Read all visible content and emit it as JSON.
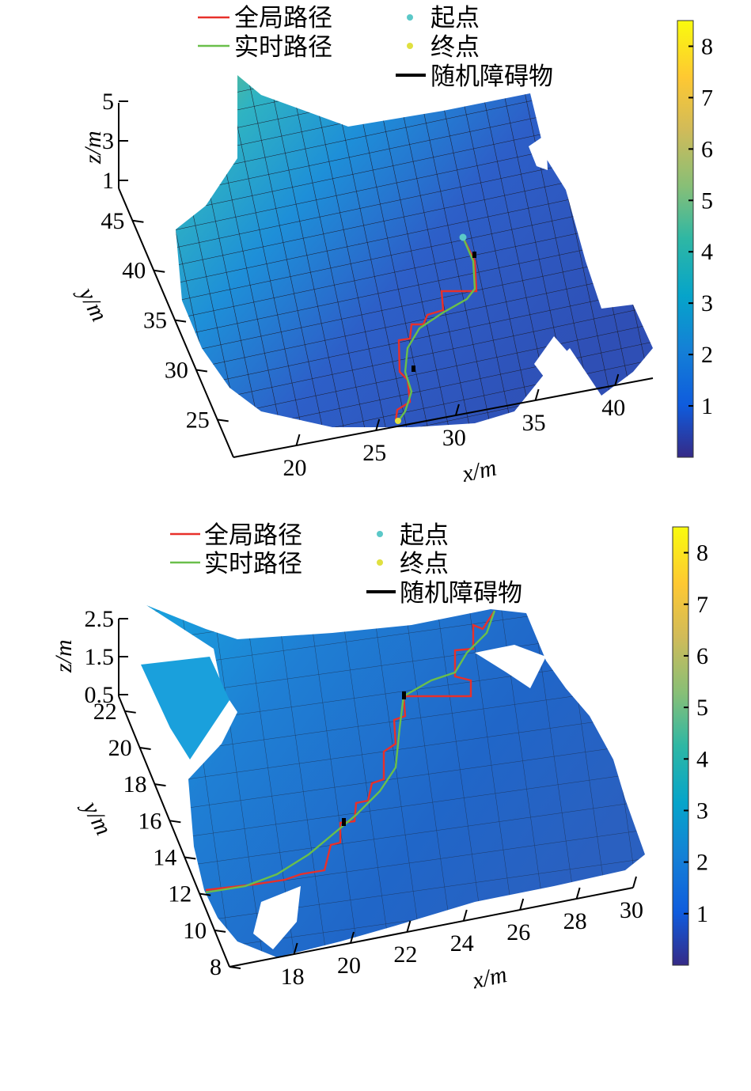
{
  "chart_data": [
    {
      "type": "surface",
      "legend": [
        "全局路径",
        "实时路径",
        "起点",
        "终点",
        "随机障碍物"
      ],
      "legend_colors": [
        "#e8302a",
        "#6abf4b",
        "#5bc8c8",
        "#e0e040",
        "#000000"
      ],
      "xlabel": "x/m",
      "ylabel": "y/m",
      "zlabel": "z/m",
      "xticks": [
        "20",
        "25",
        "30",
        "35",
        "40"
      ],
      "yticks": [
        "25",
        "30",
        "35",
        "40",
        "45"
      ],
      "zticks": [
        "1",
        "3",
        "5"
      ],
      "colorbar": {
        "min": 0,
        "max": 8.5,
        "ticks": [
          "1",
          "2",
          "3",
          "4",
          "5",
          "6",
          "7",
          "8"
        ]
      },
      "start_point": {
        "x": 31,
        "y": 40,
        "z": 1
      },
      "end_point": {
        "x": 26,
        "y": 24,
        "z": 1
      }
    },
    {
      "type": "surface",
      "legend": [
        "全局路径",
        "实时路径",
        "起点",
        "终点",
        "随机障碍物"
      ],
      "legend_colors": [
        "#e8302a",
        "#6abf4b",
        "#5bc8c8",
        "#e0e040",
        "#000000"
      ],
      "xlabel": "x/m",
      "ylabel": "y/m",
      "zlabel": "z/m",
      "xticks": [
        "18",
        "20",
        "22",
        "24",
        "26",
        "28",
        "30"
      ],
      "yticks": [
        "8",
        "10",
        "12",
        "14",
        "16",
        "18",
        "20",
        "22"
      ],
      "zticks": [
        "0.5",
        "1.5",
        "2.5"
      ],
      "colorbar": {
        "min": 0,
        "max": 8.5,
        "ticks": [
          "1",
          "2",
          "3",
          "4",
          "5",
          "6",
          "7",
          "8"
        ]
      },
      "start_point": {
        "x": 25,
        "y": 22,
        "z": 0.5
      },
      "end_point": {
        "x": 17,
        "y": 12,
        "z": 0.5
      }
    }
  ]
}
